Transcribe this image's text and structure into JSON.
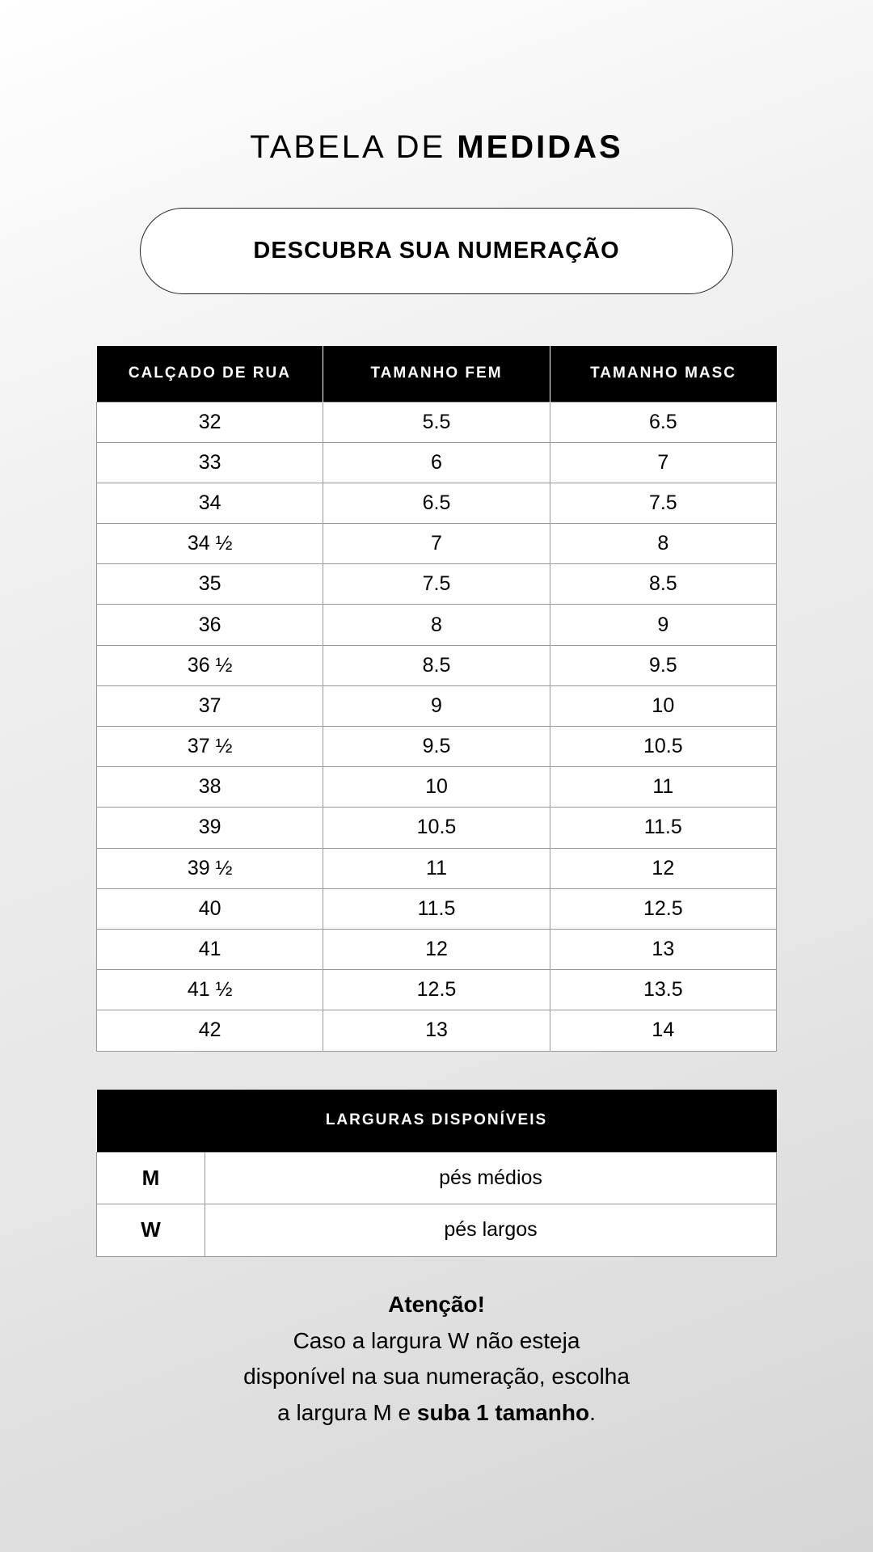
{
  "title": {
    "light": "TABELA DE ",
    "bold": "MEDIDAS"
  },
  "pill_label": "DESCUBRA SUA NUMERAÇÃO",
  "size_table": {
    "headers": [
      "CALÇADO DE RUA",
      "TAMANHO FEM",
      "TAMANHO MASC"
    ],
    "rows": [
      [
        "32",
        "5.5",
        "6.5"
      ],
      [
        "33",
        "6",
        "7"
      ],
      [
        "34",
        "6.5",
        "7.5"
      ],
      [
        "34 ½",
        "7",
        "8"
      ],
      [
        "35",
        "7.5",
        "8.5"
      ],
      [
        "36",
        "8",
        "9"
      ],
      [
        "36 ½",
        "8.5",
        "9.5"
      ],
      [
        "37",
        "9",
        "10"
      ],
      [
        "37 ½",
        "9.5",
        "10.5"
      ],
      [
        "38",
        "10",
        "11"
      ],
      [
        "39",
        "10.5",
        "11.5"
      ],
      [
        "39 ½",
        "11",
        "12"
      ],
      [
        "40",
        "11.5",
        "12.5"
      ],
      [
        "41",
        "12",
        "13"
      ],
      [
        "41 ½",
        "12.5",
        "13.5"
      ],
      [
        "42",
        "13",
        "14"
      ]
    ]
  },
  "width_table": {
    "header": "LARGURAS DISPONÍVEIS",
    "rows": [
      [
        "M",
        "pés médios"
      ],
      [
        "W",
        "pés largos"
      ]
    ]
  },
  "note": {
    "heading": "Atenção!",
    "line1": "Caso a largura W não esteja",
    "line2": "disponível na sua numeração, escolha",
    "line3_plain": "a largura M e ",
    "line3_bold": "suba 1 tamanho",
    "line3_end": "."
  }
}
